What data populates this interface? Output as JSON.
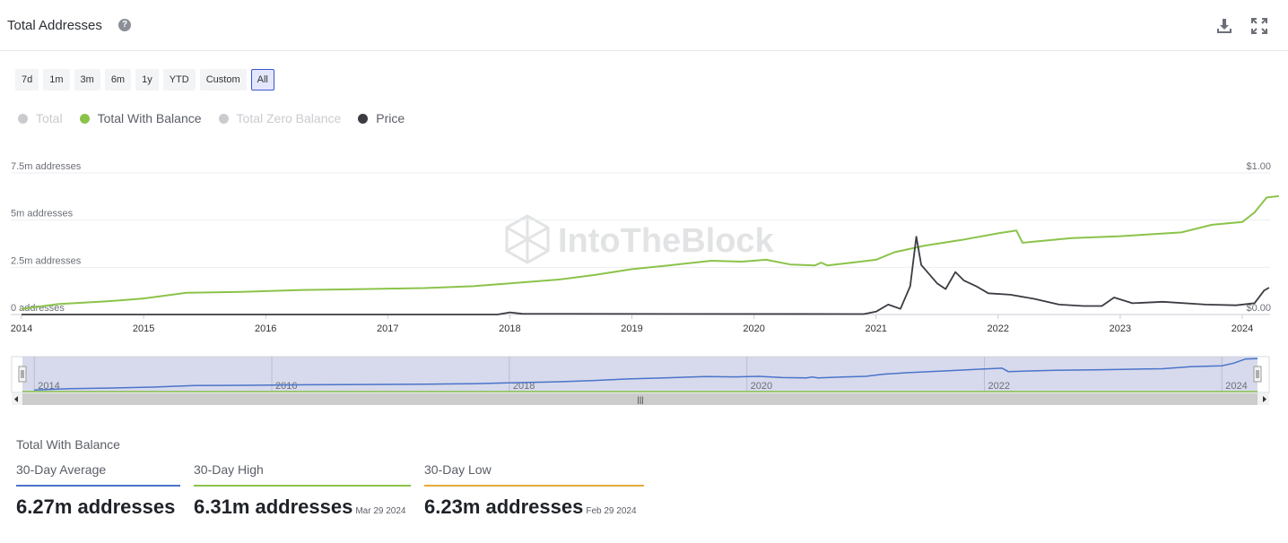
{
  "header": {
    "title": "Total Addresses",
    "help_glyph": "?",
    "icons": [
      "help-icon",
      "download-icon",
      "fullscreen-icon"
    ]
  },
  "range_buttons": [
    {
      "label": "7d",
      "active": false
    },
    {
      "label": "1m",
      "active": false
    },
    {
      "label": "3m",
      "active": false
    },
    {
      "label": "6m",
      "active": false
    },
    {
      "label": "1y",
      "active": false
    },
    {
      "label": "YTD",
      "active": false
    },
    {
      "label": "Custom",
      "active": false
    },
    {
      "label": "All",
      "active": true
    }
  ],
  "legend": [
    {
      "label": "Total",
      "color": "#c9cbcf",
      "enabled": false
    },
    {
      "label": "Total With Balance",
      "color": "#8bc34a",
      "enabled": true
    },
    {
      "label": "Total Zero Balance",
      "color": "#c9cbcf",
      "enabled": false
    },
    {
      "label": "Price",
      "color": "#3a3c42",
      "enabled": true
    }
  ],
  "watermark": "IntoTheBlock",
  "chart_data": {
    "type": "line",
    "x_ticks": [
      "2014",
      "2015",
      "2016",
      "2017",
      "2018",
      "2019",
      "2020",
      "2021",
      "2022",
      "2023",
      "2024"
    ],
    "y_left": {
      "ticks": [
        "0 addresses",
        "2.5m addresses",
        "5m addresses",
        "7.5m addresses"
      ],
      "range": [
        0,
        7.5
      ],
      "unit": "m addresses"
    },
    "y_right": {
      "ticks": [
        "$0.00",
        "$1.00"
      ],
      "range": [
        0,
        1
      ]
    },
    "grid": true,
    "series": [
      {
        "name": "Total With Balance",
        "color": "#8bc34a",
        "axis": "left",
        "points": [
          [
            2014.0,
            0.3
          ],
          [
            2014.3,
            0.55
          ],
          [
            2014.7,
            0.7
          ],
          [
            2015.0,
            0.85
          ],
          [
            2015.35,
            1.15
          ],
          [
            2015.8,
            1.2
          ],
          [
            2016.3,
            1.3
          ],
          [
            2016.8,
            1.35
          ],
          [
            2017.3,
            1.4
          ],
          [
            2017.7,
            1.5
          ],
          [
            2018.0,
            1.65
          ],
          [
            2018.4,
            1.85
          ],
          [
            2018.7,
            2.1
          ],
          [
            2019.0,
            2.4
          ],
          [
            2019.3,
            2.6
          ],
          [
            2019.65,
            2.85
          ],
          [
            2019.9,
            2.8
          ],
          [
            2020.1,
            2.9
          ],
          [
            2020.3,
            2.65
          ],
          [
            2020.5,
            2.6
          ],
          [
            2020.55,
            2.75
          ],
          [
            2020.6,
            2.6
          ],
          [
            2020.8,
            2.75
          ],
          [
            2021.0,
            2.9
          ],
          [
            2021.15,
            3.3
          ],
          [
            2021.4,
            3.65
          ],
          [
            2021.7,
            3.95
          ],
          [
            2022.0,
            4.3
          ],
          [
            2022.15,
            4.45
          ],
          [
            2022.2,
            3.8
          ],
          [
            2022.6,
            4.05
          ],
          [
            2023.0,
            4.15
          ],
          [
            2023.5,
            4.35
          ],
          [
            2023.75,
            4.75
          ],
          [
            2024.0,
            4.9
          ],
          [
            2024.1,
            5.4
          ],
          [
            2024.2,
            6.2
          ],
          [
            2024.3,
            6.27
          ]
        ]
      },
      {
        "name": "Price",
        "color": "#3a3c42",
        "axis": "right",
        "points": [
          [
            2014.0,
            0.0
          ],
          [
            2017.9,
            0.0
          ],
          [
            2018.0,
            0.015
          ],
          [
            2018.1,
            0.005
          ],
          [
            2020.9,
            0.003
          ],
          [
            2021.0,
            0.02
          ],
          [
            2021.1,
            0.07
          ],
          [
            2021.2,
            0.04
          ],
          [
            2021.28,
            0.2
          ],
          [
            2021.33,
            0.55
          ],
          [
            2021.37,
            0.35
          ],
          [
            2021.42,
            0.3
          ],
          [
            2021.5,
            0.22
          ],
          [
            2021.57,
            0.18
          ],
          [
            2021.65,
            0.3
          ],
          [
            2021.72,
            0.24
          ],
          [
            2021.82,
            0.2
          ],
          [
            2021.92,
            0.15
          ],
          [
            2022.1,
            0.14
          ],
          [
            2022.3,
            0.11
          ],
          [
            2022.5,
            0.07
          ],
          [
            2022.7,
            0.06
          ],
          [
            2022.85,
            0.06
          ],
          [
            2022.95,
            0.12
          ],
          [
            2023.1,
            0.08
          ],
          [
            2023.35,
            0.09
          ],
          [
            2023.7,
            0.07
          ],
          [
            2023.95,
            0.065
          ],
          [
            2024.1,
            0.08
          ],
          [
            2024.18,
            0.17
          ],
          [
            2024.22,
            0.19
          ]
        ]
      }
    ]
  },
  "navigator": {
    "x_ticks": [
      "2014",
      "2016",
      "2018",
      "2020",
      "2022",
      "2024"
    ],
    "grip": "|||"
  },
  "stats": {
    "title": "Total With Balance",
    "average": {
      "label": "30-Day Average",
      "value": "6.27m addresses",
      "color": "#4a74c9"
    },
    "high": {
      "label": "30-Day High",
      "value": "6.31m addresses",
      "date": "Mar 29 2024",
      "color": "#8bc34a"
    },
    "low": {
      "label": "30-Day Low",
      "value": "6.23m addresses",
      "date": "Feb 29 2024",
      "color": "#e8a93b"
    }
  }
}
